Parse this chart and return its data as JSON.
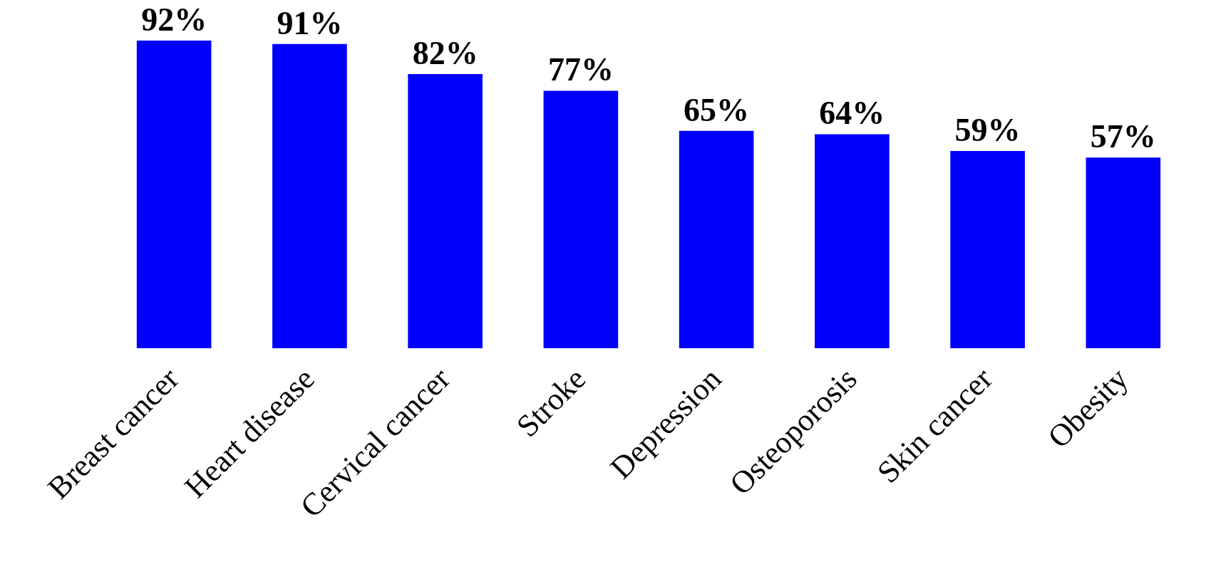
{
  "chart_data": {
    "type": "bar",
    "categories": [
      "Breast cancer",
      "Heart disease",
      "Cervical cancer",
      "Stroke",
      "Depression",
      "Osteoporosis",
      "Skin cancer",
      "Obesity"
    ],
    "values": [
      92,
      91,
      82,
      77,
      65,
      64,
      59,
      57
    ],
    "value_labels": [
      "92%",
      "91%",
      "82%",
      "77%",
      "65%",
      "64%",
      "59%",
      "57%"
    ],
    "color": "#0000ff"
  }
}
